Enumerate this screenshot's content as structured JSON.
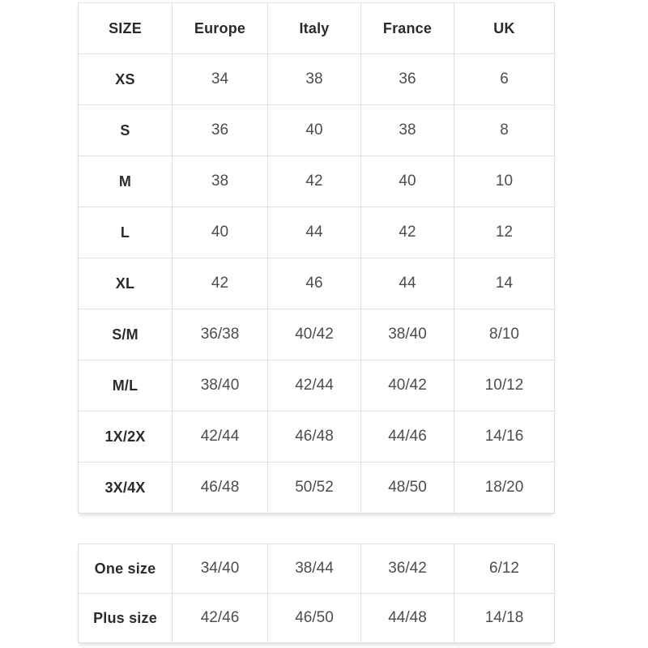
{
  "colors": {
    "background": "#ffffff",
    "border": "#e0e0e0",
    "header_text": "#2b2b2b",
    "value_text": "#4d4d4d"
  },
  "chart_data": [
    {
      "type": "table",
      "columns": [
        "SIZE",
        "Europe",
        "Italy",
        "France",
        "UK"
      ],
      "rows": [
        [
          "XS",
          "34",
          "38",
          "36",
          "6"
        ],
        [
          "S",
          "36",
          "40",
          "38",
          "8"
        ],
        [
          "M",
          "38",
          "42",
          "40",
          "10"
        ],
        [
          "L",
          "40",
          "44",
          "42",
          "12"
        ],
        [
          "XL",
          "42",
          "46",
          "44",
          "14"
        ],
        [
          "S/M",
          "36/38",
          "40/42",
          "38/40",
          "8/10"
        ],
        [
          "M/L",
          "38/40",
          "42/44",
          "40/42",
          "10/12"
        ],
        [
          "1X/2X",
          "42/44",
          "46/48",
          "44/46",
          "14/16"
        ],
        [
          "3X/4X",
          "46/48",
          "50/52",
          "48/50",
          "18/20"
        ]
      ],
      "layout": {
        "grid": true,
        "header_row": true,
        "bold_first_column": true
      }
    },
    {
      "type": "table",
      "rows": [
        [
          "One size",
          "34/40",
          "38/44",
          "36/42",
          "6/12"
        ],
        [
          "Plus size",
          "42/46",
          "46/50",
          "44/48",
          "14/18"
        ]
      ],
      "layout": {
        "grid": true,
        "header_row": false,
        "bold_first_column": true
      }
    }
  ]
}
